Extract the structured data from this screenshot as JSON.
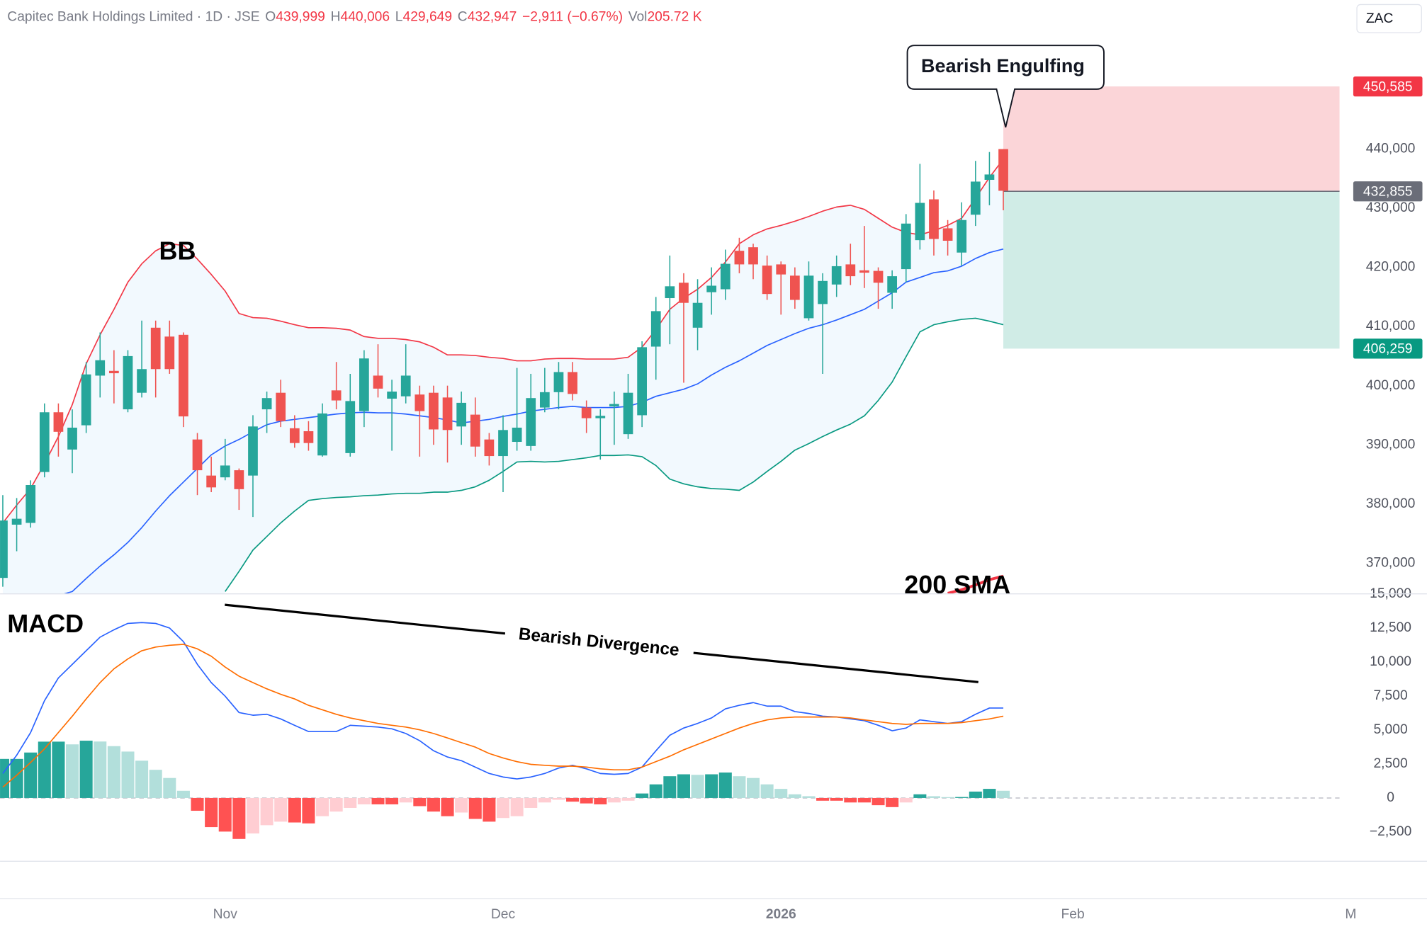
{
  "header": {
    "symbol": "Capitec Bank Holdings Limited · 1D · JSE",
    "fields": [
      {
        "key": "O",
        "value": "439,999"
      },
      {
        "key": "H",
        "value": "440,006"
      },
      {
        "key": "L",
        "value": "429,649"
      },
      {
        "key": "C",
        "value": "432,947"
      }
    ],
    "change": "−2,911 (−0.67%)",
    "volume_key": "Vol",
    "volume": "205.72 K",
    "currency": "ZAC"
  },
  "chart_data": [
    {
      "type": "candlestick",
      "categories": [
        null,
        null,
        null,
        null,
        null,
        null,
        null,
        null,
        null,
        null,
        null,
        null,
        null,
        null,
        null,
        null,
        null,
        null,
        null,
        null,
        null,
        null,
        null,
        null,
        null,
        null,
        null,
        null,
        null,
        null,
        null,
        null,
        null,
        null,
        null,
        null,
        null,
        null,
        null,
        null,
        null,
        null,
        null,
        null,
        null,
        null,
        null,
        null,
        null,
        null,
        null,
        null,
        null,
        null,
        null,
        null,
        null,
        null,
        null,
        null,
        null,
        null,
        null,
        null,
        null,
        null,
        null,
        null,
        null,
        null,
        null,
        null,
        null
      ],
      "open": [
        367500,
        376500,
        376800,
        385400,
        395500,
        389200,
        393300,
        401700,
        402500,
        396000,
        398800,
        409800,
        408300,
        408600,
        390900,
        384800,
        384500,
        385700,
        384800,
        396000,
        398800,
        392800,
        392300,
        388200,
        399200,
        388600,
        395700,
        401700,
        397800,
        398200,
        398500,
        398800,
        398000,
        393100,
        395100,
        390900,
        388100,
        390500,
        389800,
        396300,
        398900,
        402300,
        396300,
        394500,
        396500,
        391800,
        395000,
        406600,
        414800,
        417400,
        409800,
        415800,
        416300,
        422800,
        423400,
        420300,
        420500,
        418600,
        411400,
        413800,
        417100,
        420500,
        419500,
        419400,
        415700,
        419700,
        424600,
        431500,
        426600,
        422500,
        428900,
        434800,
        439999
      ],
      "high": [
        381500,
        381000,
        384000,
        397000,
        397000,
        396000,
        404000,
        409000,
        406000,
        406000,
        411000,
        411000,
        411000,
        409000,
        392000,
        388000,
        391000,
        386000,
        395000,
        399000,
        401000,
        395000,
        394000,
        397000,
        404000,
        402000,
        406000,
        407000,
        401000,
        407000,
        400000,
        400000,
        400000,
        399000,
        398000,
        392000,
        395000,
        403000,
        402000,
        403000,
        404000,
        404000,
        397500,
        396000,
        399000,
        402000,
        407500,
        415000,
        422000,
        419000,
        418000,
        420000,
        423000,
        425000,
        424000,
        422000,
        421000,
        420000,
        421000,
        419000,
        422000,
        424000,
        427000,
        420000,
        419500,
        429000,
        437500,
        433000,
        428000,
        431000,
        438000,
        439500,
        440006
      ],
      "low": [
        366000,
        372000,
        376000,
        384500,
        388000,
        385200,
        392000,
        398000,
        397000,
        395500,
        398000,
        398000,
        402000,
        393000,
        381500,
        382000,
        384000,
        379000,
        377800,
        392000,
        393000,
        389500,
        389000,
        388000,
        396000,
        388000,
        393000,
        398000,
        389000,
        397000,
        388000,
        390000,
        387000,
        390000,
        388000,
        386500,
        382000,
        389000,
        389000,
        395500,
        396000,
        397500,
        392000,
        387500,
        390000,
        391000,
        393000,
        401000,
        407000,
        400500,
        406000,
        412000,
        414500,
        419000,
        418000,
        414500,
        412000,
        413000,
        411000,
        402000,
        415000,
        417000,
        416500,
        413000,
        413000,
        417500,
        423000,
        422000,
        422000,
        420300,
        427000,
        430500,
        429649
      ],
      "close": [
        377200,
        377500,
        383200,
        395500,
        392200,
        392900,
        401900,
        404300,
        402100,
        405000,
        402800,
        402800,
        402800,
        394800,
        385700,
        382800,
        386500,
        382500,
        393100,
        397900,
        394000,
        390300,
        390300,
        395300,
        397500,
        397400,
        404600,
        399500,
        399000,
        401700,
        395700,
        392600,
        392500,
        397100,
        389700,
        388100,
        392500,
        392900,
        397900,
        398900,
        402300,
        398600,
        394500,
        394900,
        396900,
        398800,
        406500,
        412600,
        416800,
        414000,
        414000,
        416900,
        420600,
        420500,
        420500,
        415500,
        418800,
        414500,
        418600,
        417700,
        420200,
        418500,
        419100,
        417400,
        418500,
        427400,
        430900,
        424800,
        424500,
        428000,
        434500,
        435700,
        432947
      ],
      "up_color": "#26a69a",
      "down_color": "#ef5350",
      "bollinger": {
        "upper": [
          376800,
          379800,
          382600,
          386800,
          391400,
          396800,
          403700,
          408600,
          412900,
          417500,
          420600,
          422800,
          424000,
          423700,
          421400,
          418800,
          416000,
          412200,
          411500,
          411400,
          410900,
          410300,
          409800,
          409800,
          409700,
          409400,
          408300,
          408000,
          408000,
          407800,
          407400,
          406500,
          405200,
          405200,
          405100,
          404800,
          404600,
          404200,
          404200,
          404500,
          404600,
          404600,
          404500,
          404500,
          404500,
          404800,
          406500,
          409500,
          412900,
          414800,
          416300,
          418300,
          420900,
          424000,
          425500,
          426500,
          427100,
          427800,
          428600,
          429500,
          430200,
          430500,
          429800,
          428300,
          426800,
          425900,
          425500,
          426200,
          427100,
          428300,
          431700,
          435200,
          438300
        ],
        "basis": [
          null,
          null,
          null,
          null,
          364500,
          365200,
          367400,
          369500,
          371400,
          373500,
          376000,
          378800,
          381400,
          383700,
          386000,
          388300,
          389800,
          390900,
          392200,
          393400,
          394000,
          394300,
          394600,
          394900,
          395200,
          395400,
          395500,
          395400,
          395400,
          395200,
          394900,
          394600,
          394200,
          393700,
          394000,
          394300,
          394800,
          395200,
          395700,
          396000,
          396300,
          396500,
          396300,
          396300,
          396300,
          396500,
          397200,
          398200,
          398800,
          399400,
          400300,
          401800,
          403100,
          404200,
          405500,
          406800,
          407800,
          408800,
          409700,
          410300,
          411100,
          412000,
          412900,
          414300,
          415700,
          417500,
          418300,
          419100,
          419400,
          420200,
          421500,
          422500,
          423100
        ],
        "lower": [
          null,
          null,
          null,
          null,
          null,
          null,
          null,
          null,
          null,
          null,
          null,
          null,
          null,
          null,
          null,
          null,
          365200,
          368600,
          372200,
          374500,
          376800,
          378800,
          380600,
          380900,
          381100,
          381200,
          381400,
          381500,
          381700,
          381800,
          381800,
          382000,
          382000,
          382300,
          382900,
          384000,
          385500,
          387100,
          387200,
          387100,
          387200,
          387500,
          387800,
          388200,
          388200,
          388300,
          388000,
          386500,
          384200,
          383400,
          382900,
          382600,
          382500,
          382300,
          383700,
          385500,
          387200,
          389100,
          390200,
          391400,
          392500,
          393500,
          394900,
          397500,
          400600,
          404900,
          409100,
          410300,
          410800,
          411200,
          411400,
          410900,
          410300
        ],
        "upper_color": "#f23645",
        "basis_color": "#2962ff",
        "lower_color": "#089981",
        "fill": "#2196f3"
      },
      "sma200": {
        "values": [
          null,
          null,
          null,
          null,
          null,
          null,
          null,
          null,
          null,
          null,
          null,
          null,
          null,
          null,
          null,
          null,
          null,
          null,
          null,
          null,
          null,
          null,
          null,
          null,
          null,
          null,
          null,
          null,
          null,
          null,
          null,
          null,
          null,
          null,
          null,
          null,
          null,
          null,
          null,
          null,
          null,
          null,
          null,
          null,
          null,
          null,
          null,
          null,
          null,
          null,
          null,
          null,
          null,
          null,
          null,
          null,
          null,
          null,
          null,
          null,
          null,
          null,
          null,
          null,
          null,
          null,
          null,
          null,
          364900,
          365500,
          366300,
          367200,
          367800
        ],
        "color": "#f23645"
      },
      "annotations": {
        "bb": "BB",
        "pattern": "Bearish Engulfing",
        "sma": "200 SMA"
      },
      "price_tags": [
        {
          "value": 450585,
          "label": "450,585",
          "color": "#f23645"
        },
        {
          "value": 432855,
          "label": "432,855",
          "color": "#6a6d78"
        },
        {
          "value": 406259,
          "label": "406,259",
          "color": "#089981"
        }
      ],
      "zones": {
        "loss": "#fbd5d8",
        "profit": "#d0ece6"
      },
      "xlim": [
        -0.2,
        96.2
      ],
      "ylim": [
        364800,
        465200
      ],
      "yticks": [
        {
          "value": 370000,
          "label": "370,000"
        },
        {
          "value": 380000,
          "label": "380,000"
        },
        {
          "value": 390000,
          "label": "390,000"
        },
        {
          "value": 400000,
          "label": "400,000"
        },
        {
          "value": 410000,
          "label": "410,000"
        },
        {
          "value": 420000,
          "label": "420,000"
        },
        {
          "value": 430000,
          "label": "430,000"
        },
        {
          "value": 440000,
          "label": "440,000"
        }
      ]
    },
    {
      "type": "macd",
      "title": "MACD",
      "annotation": "Bearish Divergence",
      "histogram": [
        2870,
        2870,
        3340,
        4140,
        4140,
        3940,
        4210,
        4150,
        3810,
        3410,
        2740,
        2070,
        1470,
        530,
        -940,
        -2140,
        -2470,
        -3010,
        -2610,
        -2000,
        -1740,
        -1800,
        -1870,
        -1340,
        -1000,
        -730,
        -470,
        -470,
        -470,
        -330,
        -600,
        -1000,
        -1340,
        -1070,
        -1540,
        -1740,
        -1470,
        -1340,
        -730,
        -330,
        -130,
        -270,
        -400,
        -470,
        -330,
        -200,
        330,
        1000,
        1600,
        1740,
        1700,
        1740,
        1870,
        1600,
        1470,
        1000,
        670,
        270,
        130,
        -200,
        -200,
        -330,
        -330,
        -530,
        -670,
        -330,
        270,
        130,
        60,
        70,
        470,
        670,
        530
      ],
      "histogram_colors": {
        "up_strong": "#26a69a",
        "up_weak": "#b2dfdb",
        "down_strong": "#ff5252",
        "down_weak": "#ffcdd2"
      },
      "macd": {
        "values": [
          1800,
          3140,
          4810,
          7150,
          8820,
          9820,
          10820,
          11820,
          12360,
          12830,
          12890,
          12830,
          12490,
          11490,
          9820,
          8480,
          7480,
          6280,
          6080,
          6150,
          5810,
          5340,
          4880,
          4880,
          4880,
          5340,
          5280,
          5210,
          5080,
          4740,
          4210,
          3470,
          3010,
          2740,
          2270,
          1800,
          1540,
          1400,
          1540,
          1800,
          2200,
          2400,
          2140,
          1800,
          1740,
          1800,
          2270,
          3470,
          4610,
          5140,
          5480,
          5880,
          6550,
          6810,
          7010,
          6750,
          6750,
          6350,
          6210,
          6010,
          5950,
          5810,
          5680,
          5340,
          4940,
          5140,
          5740,
          5610,
          5480,
          5610,
          6150,
          6610,
          6610
        ],
        "color": "#2962ff"
      },
      "signal": {
        "values": [
          800,
          1670,
          2610,
          3610,
          4810,
          6010,
          7280,
          8480,
          9490,
          10220,
          10820,
          11090,
          11220,
          11290,
          10960,
          10420,
          9620,
          8950,
          8480,
          8020,
          7620,
          7280,
          6810,
          6480,
          6150,
          5880,
          5680,
          5480,
          5340,
          5210,
          5010,
          4740,
          4410,
          4070,
          3740,
          3270,
          2940,
          2670,
          2470,
          2400,
          2340,
          2340,
          2270,
          2140,
          2070,
          2070,
          2270,
          2670,
          3070,
          3540,
          3940,
          4340,
          4740,
          5140,
          5480,
          5740,
          5880,
          5950,
          5950,
          5950,
          5950,
          5880,
          5740,
          5610,
          5480,
          5410,
          5480,
          5480,
          5480,
          5540,
          5680,
          5810,
          6010
        ],
        "color": "#ff6d00"
      },
      "zero_line": true,
      "xlim": [
        -0.2,
        96.2
      ],
      "xticks": [
        {
          "value": 16,
          "label": "Nov"
        },
        {
          "value": 36,
          "label": "Dec"
        },
        {
          "value": 56,
          "label": "2026"
        },
        {
          "value": 77,
          "label": "Feb"
        },
        {
          "value": 97,
          "label": "M"
        }
      ],
      "ylim": [
        -4650,
        15000
      ],
      "yticks": [
        {
          "value": -2500,
          "label": "−2,500"
        },
        0,
        {
          "value": 2500,
          "label": "2,500"
        },
        {
          "value": 5000,
          "label": "5,000"
        },
        {
          "value": 7500,
          "label": "7,500"
        },
        {
          "value": 10000,
          "label": "10,000"
        },
        {
          "value": 12500,
          "label": "12,500"
        },
        {
          "value": 15000,
          "label": "15,000"
        }
      ]
    }
  ]
}
